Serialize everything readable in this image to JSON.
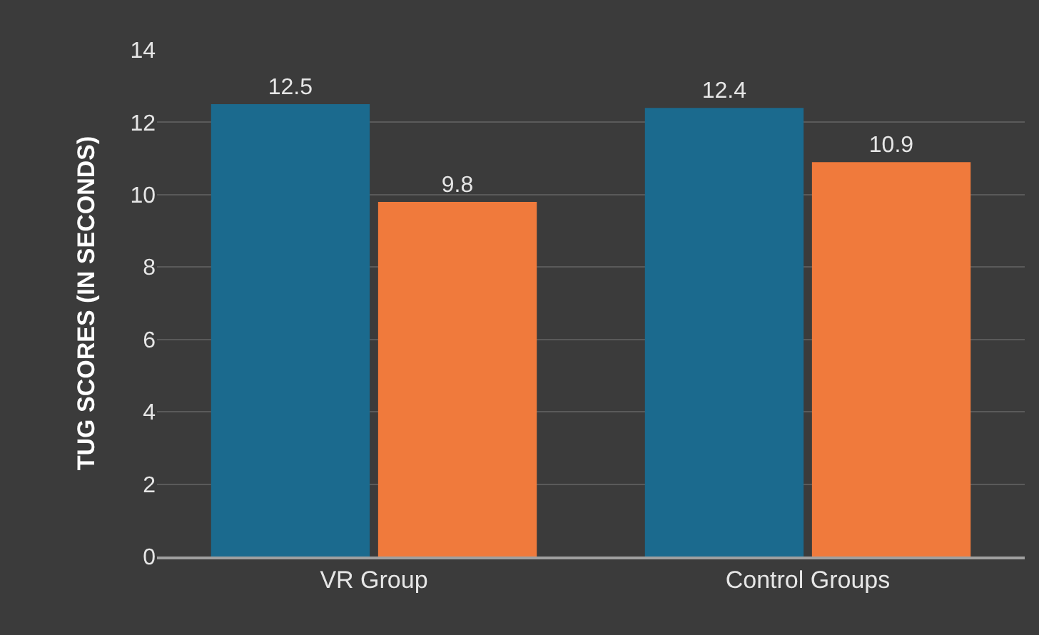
{
  "chart_data": {
    "type": "bar",
    "ylabel": "TUG SCORES (IN SECONDS)",
    "categories": [
      "VR Group",
      "Control Groups"
    ],
    "series": [
      {
        "color": "#1b6a8e",
        "values": [
          12.5,
          12.4
        ]
      },
      {
        "color": "#f07a3c",
        "values": [
          9.8,
          10.9
        ]
      }
    ],
    "ylim": [
      0,
      14
    ],
    "yticks": [
      0,
      2,
      4,
      6,
      8,
      10,
      12,
      14
    ],
    "grid": "y",
    "data_labels": true,
    "legend": false
  }
}
